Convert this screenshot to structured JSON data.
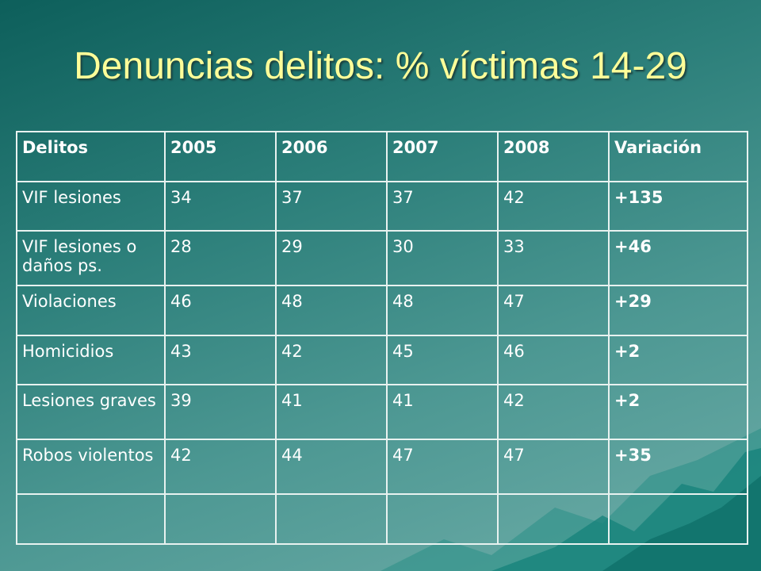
{
  "slide": {
    "title": "Denuncias delitos: % víctimas 14-29"
  },
  "table": {
    "headers": [
      "Delitos",
      "2005",
      "2006",
      "2007",
      "2008",
      "Variación"
    ],
    "rows": [
      {
        "delito": "VIF lesiones",
        "y2005": "34",
        "y2006": "37",
        "y2007": "37",
        "y2008": "42",
        "variacion": "+135"
      },
      {
        "delito": "VIF lesiones o daños ps.",
        "y2005": "28",
        "y2006": "29",
        "y2007": "30",
        "y2008": "33",
        "variacion": "+46"
      },
      {
        "delito": "Violaciones",
        "y2005": "46",
        "y2006": "48",
        "y2007": "48",
        "y2008": "47",
        "variacion": "+29"
      },
      {
        "delito": "Homicidios",
        "y2005": "43",
        "y2006": "42",
        "y2007": "45",
        "y2008": "46",
        "variacion": "+2"
      },
      {
        "delito": "Lesiones graves",
        "y2005": "39",
        "y2006": "41",
        "y2007": "41",
        "y2008": "42",
        "variacion": "+2"
      },
      {
        "delito": "Robos violentos",
        "y2005": "42",
        "y2006": "44",
        "y2007": "47",
        "y2008": "47",
        "variacion": "+35"
      },
      {
        "delito": "",
        "y2005": "",
        "y2006": "",
        "y2007": "",
        "y2008": "",
        "variacion": ""
      }
    ]
  },
  "colors": {
    "title": "#ffff99",
    "text": "#ffffff",
    "grid": "#e8f2f0"
  }
}
